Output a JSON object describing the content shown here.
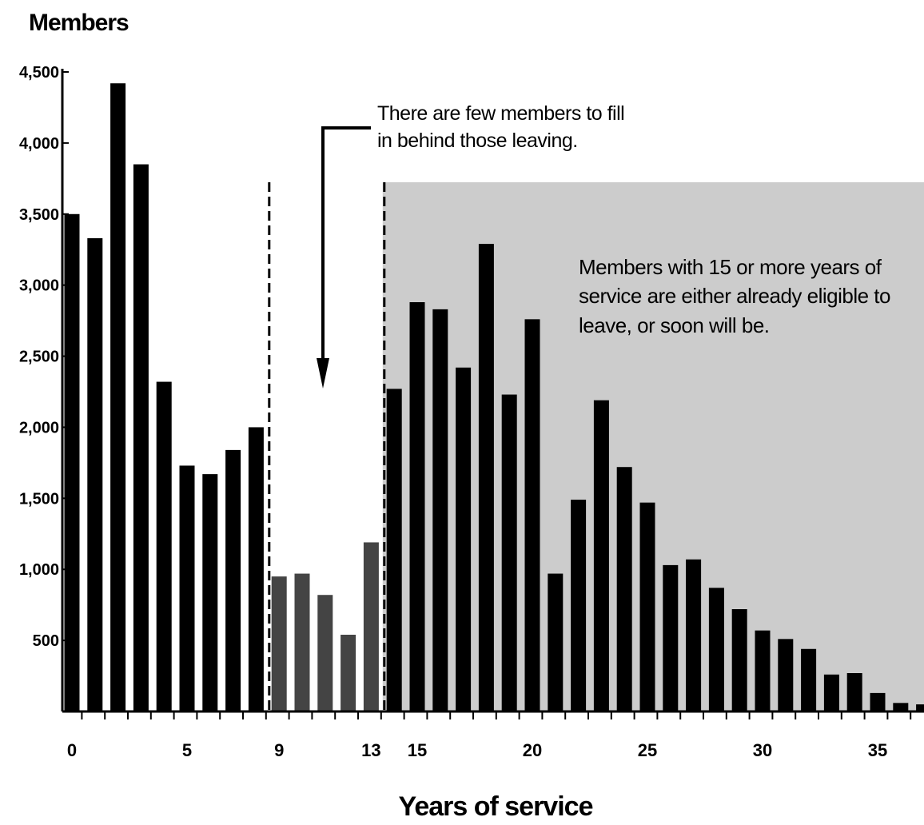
{
  "chart_data": {
    "type": "bar",
    "ylabel": "Members",
    "xlabel": "Years of service",
    "ylim": [
      0,
      4500
    ],
    "yticks": [
      500,
      1000,
      1500,
      2000,
      2500,
      3000,
      3500,
      4000,
      4500
    ],
    "ytick_labels": [
      "500",
      "1,000",
      "1,500",
      "2,000",
      "2,500",
      "3,000",
      "3,500",
      "4,000",
      "4,500"
    ],
    "xticks": [
      0,
      5,
      9,
      13,
      15,
      20,
      25,
      30,
      35
    ],
    "xtick_labels": [
      "0",
      "5",
      "9",
      "13",
      "15",
      "20",
      "25",
      "30",
      "35"
    ],
    "x": [
      0,
      1,
      2,
      3,
      4,
      5,
      6,
      7,
      8,
      9,
      10,
      11,
      12,
      13,
      14,
      15,
      16,
      17,
      18,
      19,
      20,
      21,
      22,
      23,
      24,
      25,
      26,
      27,
      28,
      29,
      30,
      31,
      32,
      33,
      34,
      35,
      36,
      37
    ],
    "values": [
      3500,
      3330,
      4420,
      3850,
      2320,
      1730,
      1670,
      1840,
      2000,
      950,
      970,
      820,
      540,
      1190,
      2270,
      2880,
      2830,
      2420,
      3290,
      2230,
      2760,
      970,
      1490,
      2190,
      1720,
      1470,
      1030,
      1070,
      870,
      720,
      570,
      510,
      440,
      260,
      270,
      130,
      60,
      50
    ],
    "highlight_range": [
      9,
      13
    ],
    "highlight_color": "#444444",
    "bar_color": "#000000",
    "shaded_region_start": 14,
    "shaded_color": "#cccccc",
    "dashed_lines_at": [
      9,
      14
    ],
    "grid": false,
    "annotations": {
      "few_members": "There are few members to fill in behind those leaving.",
      "eligible": "Members with 15 or more years of service are either already eligible to leave, or soon will be."
    }
  }
}
